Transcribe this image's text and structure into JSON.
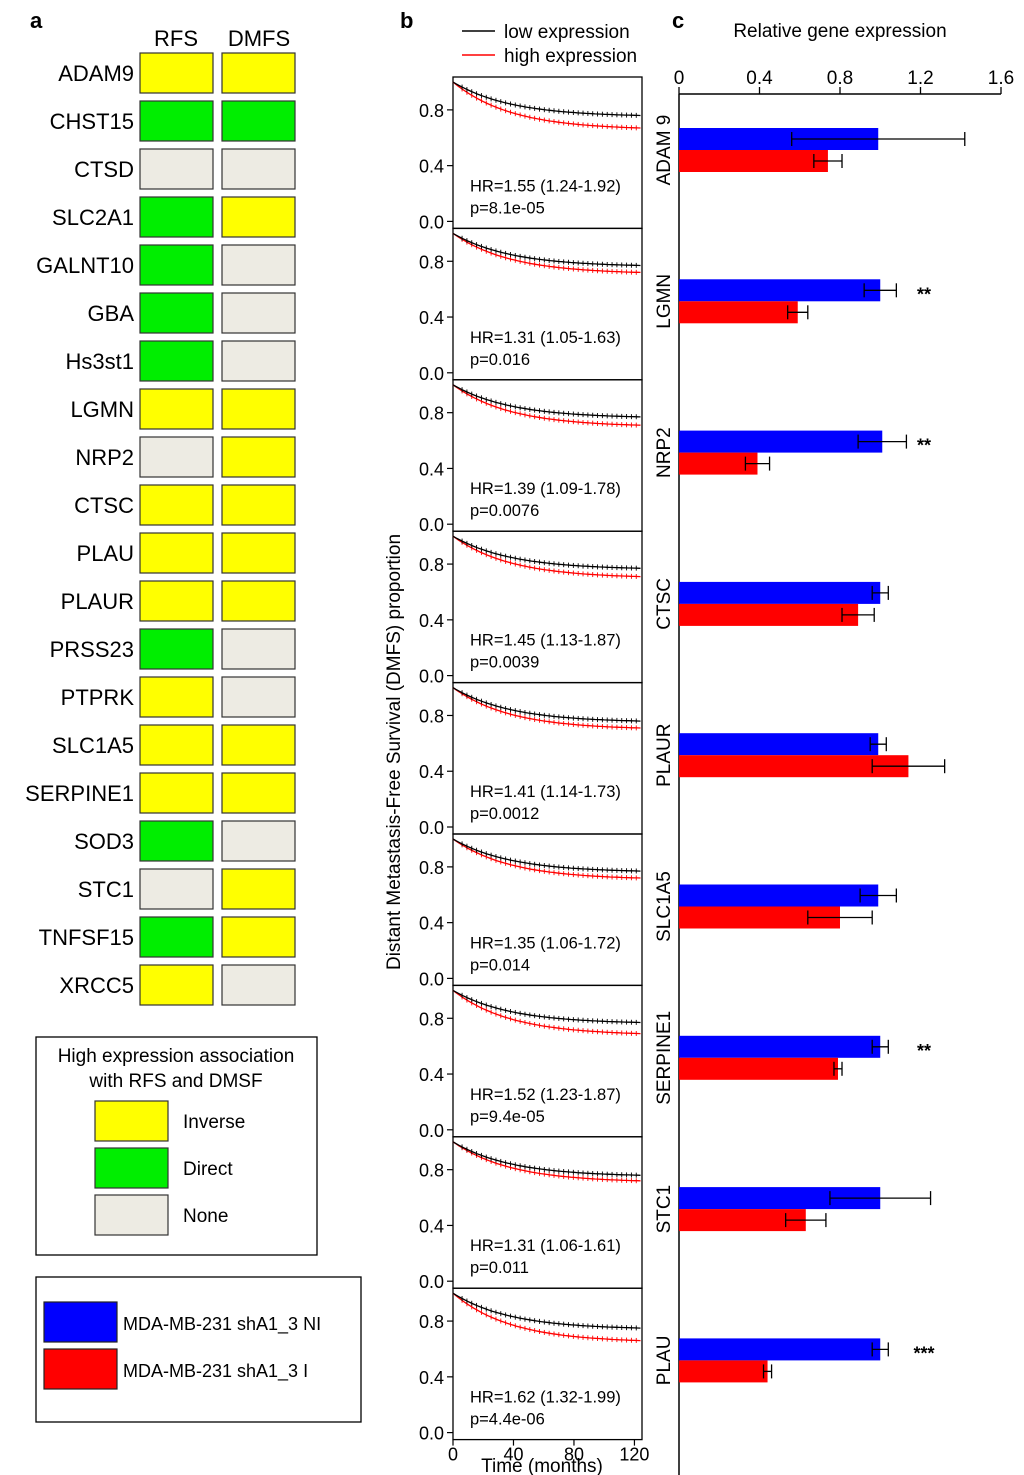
{
  "panel_labels": [
    "a",
    "b",
    "c"
  ],
  "colors": {
    "inverse": "#ffff00",
    "direct": "#00ee00",
    "none": "#edebe3",
    "ni": "#0000ff",
    "i": "#ff0000",
    "low": "#000000",
    "high": "#ff0000"
  },
  "panel_a": {
    "columns": [
      "RFS",
      "DMFS"
    ],
    "rows": [
      {
        "gene": "ADAM9",
        "rfs": "inverse",
        "dmfs": "inverse"
      },
      {
        "gene": "CHST15",
        "rfs": "direct",
        "dmfs": "direct"
      },
      {
        "gene": "CTSD",
        "rfs": "none",
        "dmfs": "none"
      },
      {
        "gene": "SLC2A1",
        "rfs": "direct",
        "dmfs": "inverse"
      },
      {
        "gene": "GALNT10",
        "rfs": "direct",
        "dmfs": "none"
      },
      {
        "gene": "GBA",
        "rfs": "direct",
        "dmfs": "none"
      },
      {
        "gene": "Hs3st1",
        "rfs": "direct",
        "dmfs": "none"
      },
      {
        "gene": "LGMN",
        "rfs": "inverse",
        "dmfs": "inverse"
      },
      {
        "gene": "NRP2",
        "rfs": "none",
        "dmfs": "inverse"
      },
      {
        "gene": "CTSC",
        "rfs": "inverse",
        "dmfs": "inverse"
      },
      {
        "gene": "PLAU",
        "rfs": "inverse",
        "dmfs": "inverse"
      },
      {
        "gene": "PLAUR",
        "rfs": "inverse",
        "dmfs": "inverse"
      },
      {
        "gene": "PRSS23",
        "rfs": "direct",
        "dmfs": "none"
      },
      {
        "gene": "PTPRK",
        "rfs": "inverse",
        "dmfs": "none"
      },
      {
        "gene": "SLC1A5",
        "rfs": "inverse",
        "dmfs": "inverse"
      },
      {
        "gene": "SERPINE1",
        "rfs": "inverse",
        "dmfs": "inverse"
      },
      {
        "gene": "SOD3",
        "rfs": "direct",
        "dmfs": "none"
      },
      {
        "gene": "STC1",
        "rfs": "none",
        "dmfs": "inverse"
      },
      {
        "gene": "TNFSF15",
        "rfs": "direct",
        "dmfs": "inverse"
      },
      {
        "gene": "XRCC5",
        "rfs": "inverse",
        "dmfs": "none"
      }
    ],
    "legend_title_line1": "High expression association",
    "legend_title_line2": "with RFS and DMSF",
    "legend_items": [
      {
        "key": "inverse",
        "label": "Inverse"
      },
      {
        "key": "direct",
        "label": "Direct"
      },
      {
        "key": "none",
        "label": "None"
      }
    ]
  },
  "cell_legend": [
    {
      "key": "ni",
      "label": "MDA-MB-231 shA1_3 NI"
    },
    {
      "key": "i",
      "label": "MDA-MB-231 shA1_3 I"
    }
  ],
  "chart_data": [
    {
      "type": "line",
      "panel": "b",
      "ylabel": "Distant Metastasis-Free Survival (DMFS) proportion",
      "xlabel": "Time (months)",
      "xlim": [
        0,
        125
      ],
      "ylim": [
        0,
        1.0
      ],
      "x_ticks": [
        0,
        40,
        80,
        120
      ],
      "y_ticks": [
        "0.0",
        "0.4",
        "0.8"
      ],
      "legend": [
        "low expression",
        "high expression"
      ],
      "legend_position": "top",
      "subplots": [
        {
          "hr": "HR=1.55 (1.24-1.92)",
          "p": "p=8.1e-05",
          "low_end": 0.76,
          "high_end": 0.67
        },
        {
          "hr": "HR=1.31 (1.05-1.63)",
          "p": "p=0.016",
          "low_end": 0.77,
          "high_end": 0.72
        },
        {
          "hr": "HR=1.39 (1.09-1.78)",
          "p": "p=0.0076",
          "low_end": 0.77,
          "high_end": 0.71
        },
        {
          "hr": "HR=1.45 (1.13-1.87)",
          "p": "p=0.0039",
          "low_end": 0.77,
          "high_end": 0.71
        },
        {
          "hr": "HR=1.41 (1.14-1.73)",
          "p": "p=0.0012",
          "low_end": 0.76,
          "high_end": 0.71
        },
        {
          "hr": "HR=1.35 (1.06-1.72)",
          "p": "p=0.014",
          "low_end": 0.77,
          "high_end": 0.72
        },
        {
          "hr": "HR=1.52 (1.23-1.87)",
          "p": "p=9.4e-05",
          "low_end": 0.77,
          "high_end": 0.69
        },
        {
          "hr": "HR=1.31 (1.06-1.61)",
          "p": "p=0.011",
          "low_end": 0.76,
          "high_end": 0.72
        },
        {
          "hr": "HR=1.62 (1.32-1.99)",
          "p": "p=4.4e-06",
          "low_end": 0.75,
          "high_end": 0.66
        }
      ]
    },
    {
      "type": "bar",
      "panel": "c",
      "orientation": "horizontal",
      "title": "Relative gene expression",
      "xlim": [
        0,
        1.6
      ],
      "x_ticks": [
        "0",
        "0.4",
        "0.8",
        "1.2",
        "1.6"
      ],
      "categories": [
        "ADAM 9",
        "LGMN",
        "NRP2",
        "CTSC",
        "PLAUR",
        "SLC1A5",
        "SERPINE1",
        "STC1",
        "PLAU"
      ],
      "series": [
        {
          "key": "ni",
          "values": [
            0.99,
            1.0,
            1.01,
            1.0,
            0.99,
            0.99,
            1.0,
            1.0,
            1.0
          ],
          "errors": [
            0.43,
            0.08,
            0.12,
            0.04,
            0.04,
            0.09,
            0.04,
            0.25,
            0.04
          ]
        },
        {
          "key": "i",
          "values": [
            0.74,
            0.59,
            0.39,
            0.89,
            1.14,
            0.8,
            0.79,
            0.63,
            0.44
          ],
          "errors": [
            0.07,
            0.05,
            0.06,
            0.08,
            0.18,
            0.16,
            0.02,
            0.1,
            0.02
          ]
        }
      ],
      "significance": [
        "",
        "**",
        "**",
        "",
        "",
        "",
        "**",
        "",
        "***"
      ]
    }
  ]
}
